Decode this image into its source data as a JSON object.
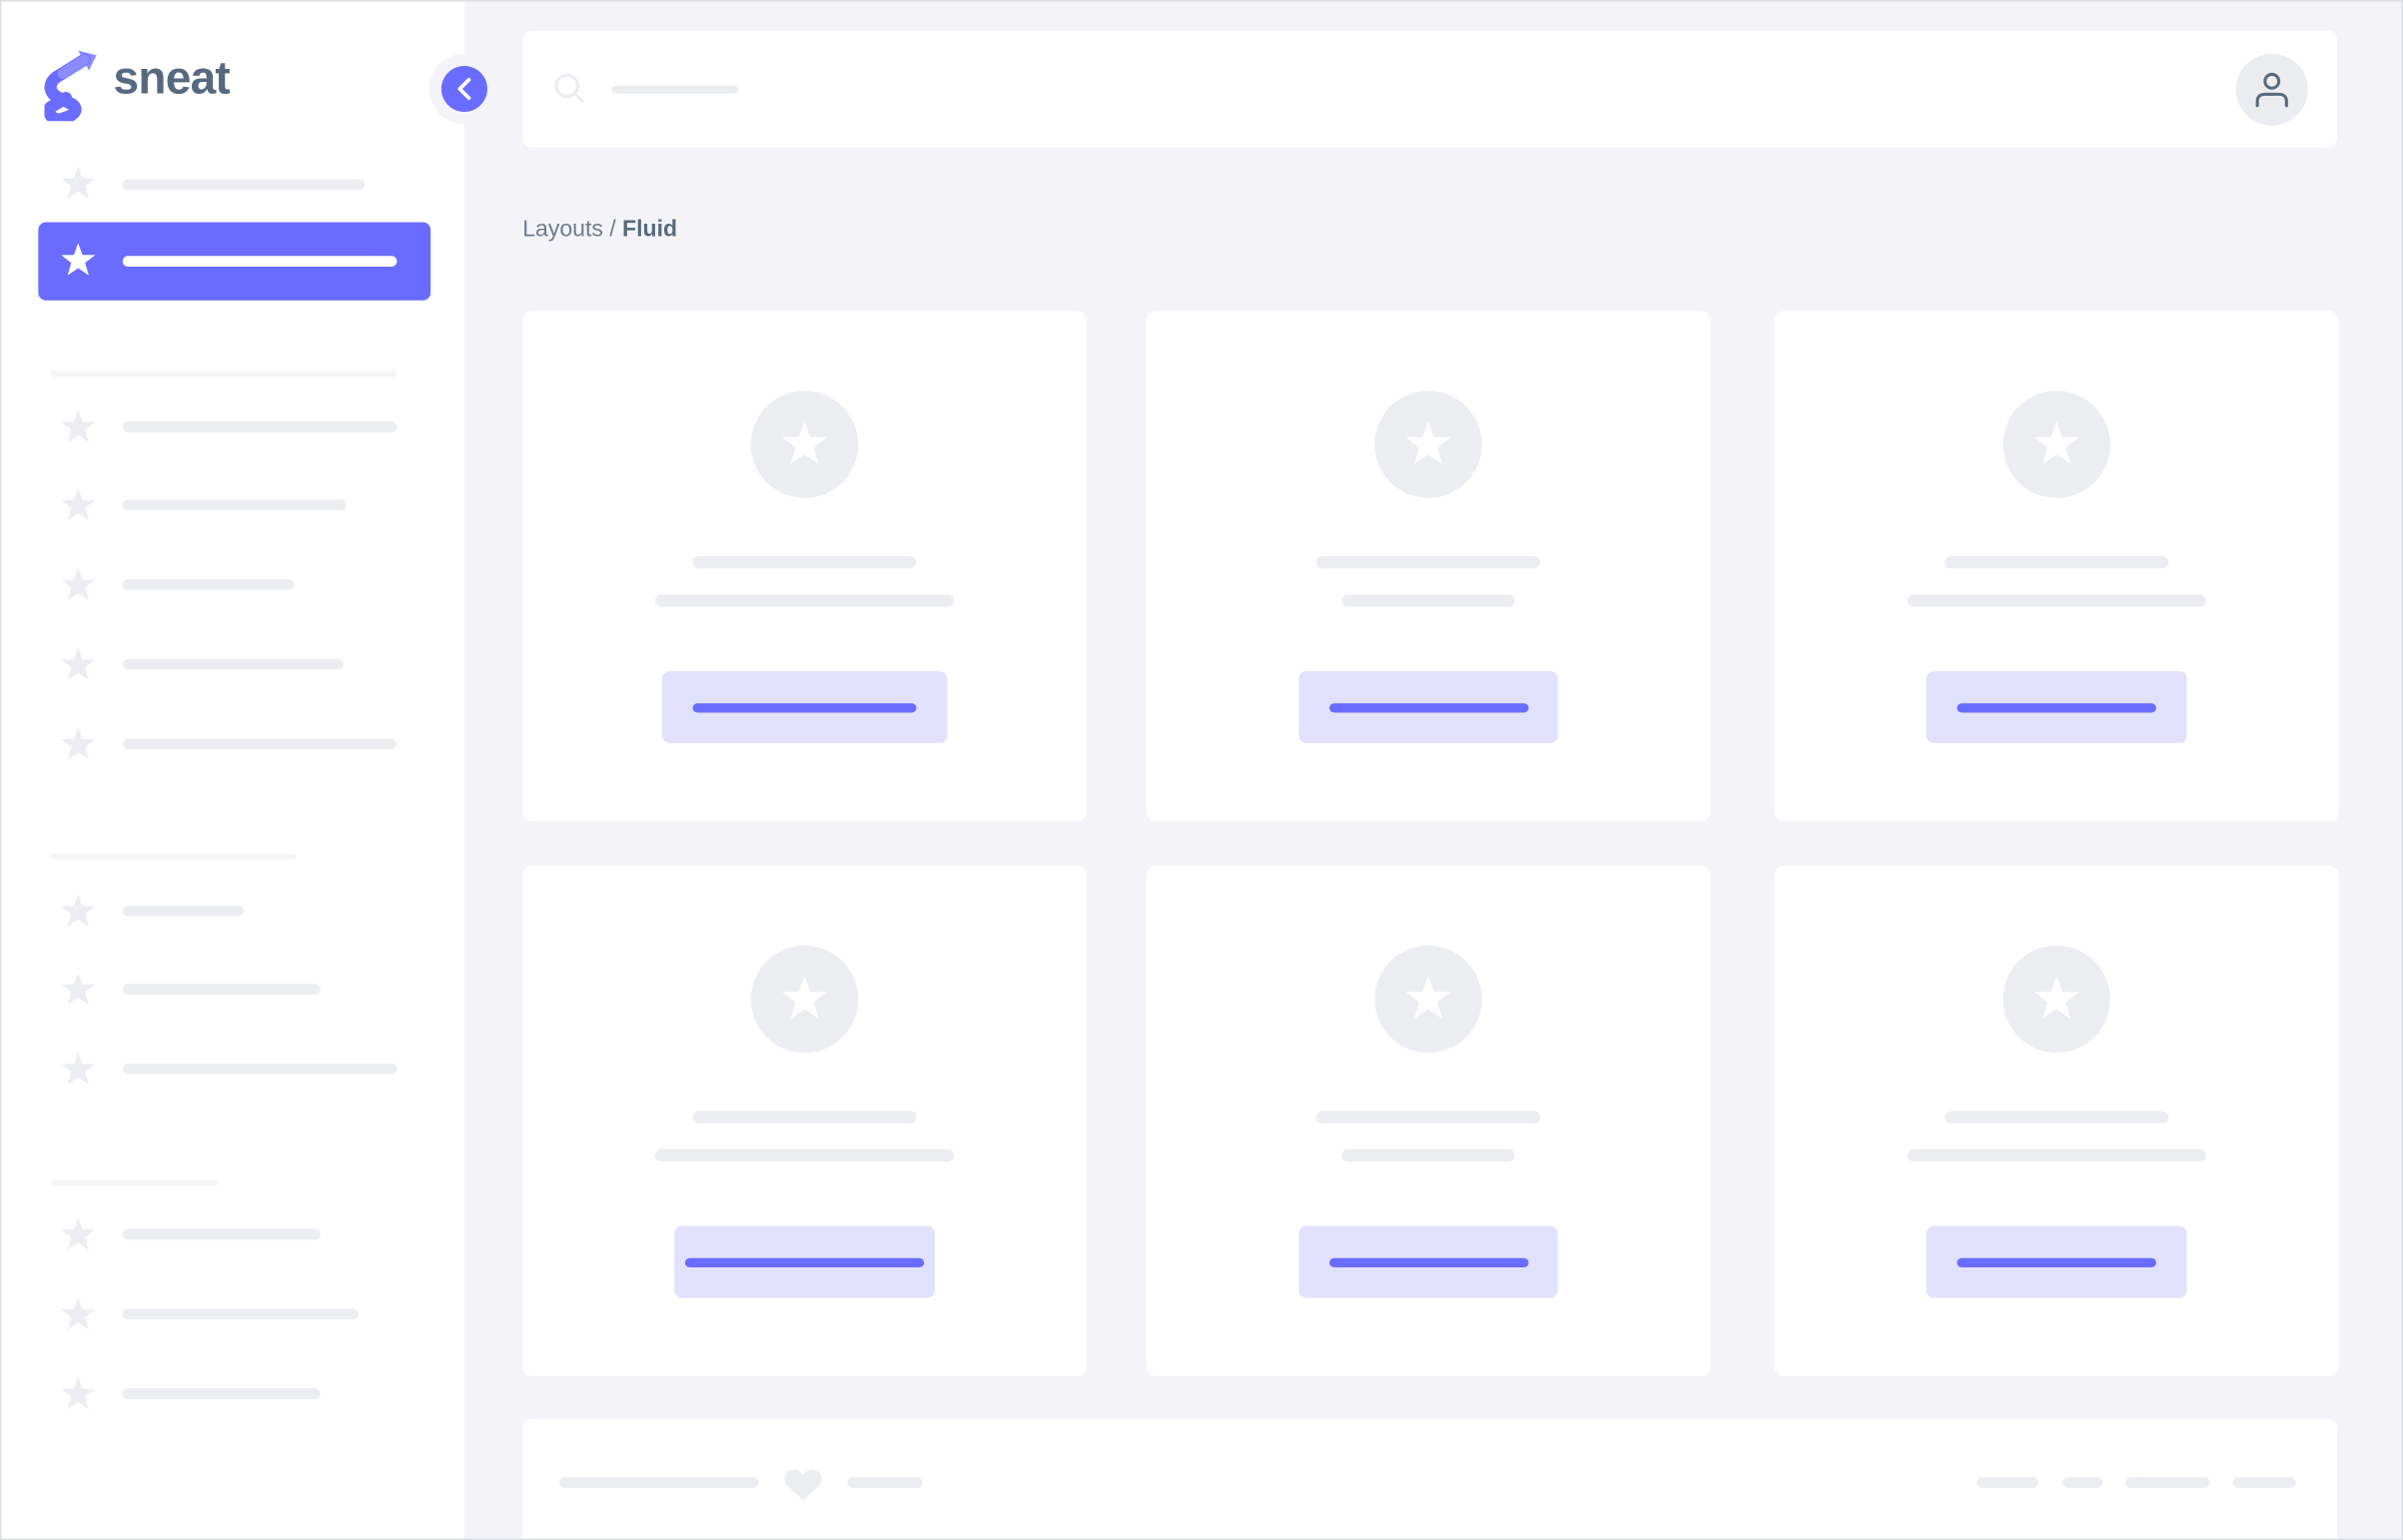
{
  "brand": {
    "name": "sneat",
    "logo_icon": "sneat-logo-icon"
  },
  "colors": {
    "primary": "#696cff",
    "primary_light": "#e1e1fe",
    "placeholder": "#ecedf1",
    "background": "#f4f4f8",
    "text": "#566a7f"
  },
  "sidebar": {
    "toggle_icon": "chevron-left-icon",
    "item_icon": "star-icon",
    "active_index": 1
  },
  "navbar": {
    "search_icon": "search-icon",
    "avatar_icon": "user-icon"
  },
  "breadcrumb": {
    "parent": "Layouts",
    "separator": "/",
    "current": "Fluid"
  },
  "cards": {
    "count": 6,
    "icon": "star-icon"
  },
  "footer": {
    "icon": "heart-icon"
  }
}
